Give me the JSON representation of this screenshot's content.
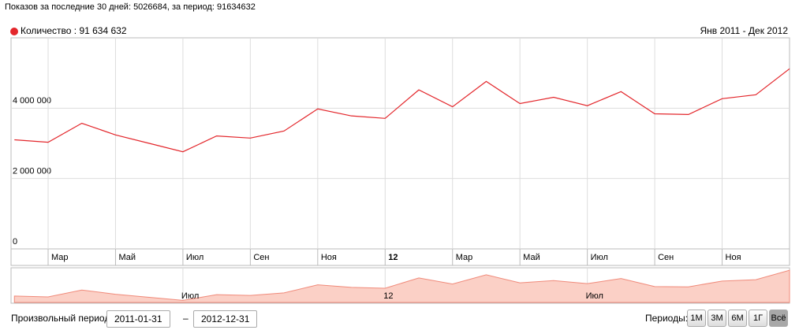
{
  "header": "Показов за последние 30 дней: 5026684, за период: 91634632",
  "range_label": "Янв 2011 - Дек 2012",
  "chart_data": {
    "type": "line",
    "x": [
      1,
      2,
      3,
      4,
      5,
      6,
      7,
      8,
      9,
      10,
      11,
      12,
      13,
      14,
      15,
      16,
      17,
      18,
      19,
      20,
      21,
      22,
      23,
      24
    ],
    "series": [
      {
        "name": "Количество : 91 634 632",
        "color": "#e3262b",
        "values": [
          3100000,
          3030000,
          3570000,
          3240000,
          3000000,
          2760000,
          3210000,
          3150000,
          3350000,
          3980000,
          3780000,
          3710000,
          4520000,
          4040000,
          4760000,
          4130000,
          4310000,
          4070000,
          4470000,
          3840000,
          3820000,
          4270000,
          4380000,
          5120000
        ]
      }
    ],
    "xlim": [
      0.9,
      24
    ],
    "xticks": [
      {
        "value": 2,
        "label": "Мар"
      },
      {
        "value": 4,
        "label": "Май"
      },
      {
        "value": 6,
        "label": "Июл"
      },
      {
        "value": 8,
        "label": "Сен"
      },
      {
        "value": 10,
        "label": "Ноя"
      },
      12,
      {
        "value": 14,
        "label": "Мар"
      },
      {
        "value": 16,
        "label": "Май"
      },
      {
        "value": 18,
        "label": "Июл"
      },
      {
        "value": 20,
        "label": "Сен"
      },
      {
        "value": 22,
        "label": "Ноя"
      }
    ],
    "ylim": [
      0,
      6000000
    ],
    "yticks": [
      0,
      {
        "value": 2000000,
        "label": "2 000 000"
      },
      {
        "value": 4000000,
        "label": "4 000 000"
      }
    ],
    "grid": true,
    "navigator": {
      "ylim": [
        2600000,
        5250000
      ],
      "fill": "#fbd0c6",
      "line": "#f08a7a",
      "xticks": [
        {
          "value": 6,
          "label": "Июл"
        },
        12,
        {
          "value": 18,
          "label": "Июл"
        }
      ]
    }
  },
  "controls": {
    "custom_label": "Произвольный период:",
    "from": "2011-01-31",
    "separator": "–",
    "to": "2012-12-31",
    "periods_label": "Периоды:",
    "buttons": [
      "1М",
      "3М",
      "6М",
      "1Г",
      "Всё"
    ]
  }
}
